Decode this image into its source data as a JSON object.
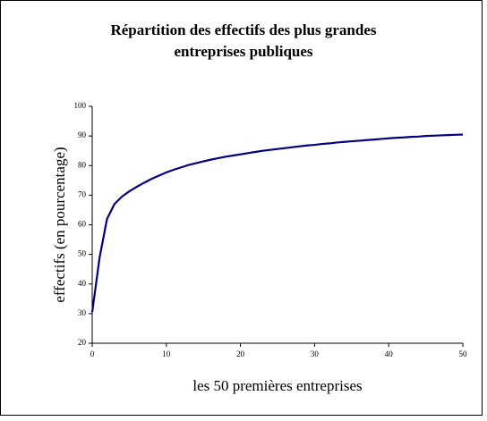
{
  "chart_data": {
    "type": "line",
    "title": "Répartition des effectifs des plus grandes entreprises publiques",
    "xlabel": "les 50 premières entreprises",
    "ylabel": "effectifs (en pourcentage)",
    "x": [
      0,
      1,
      2,
      3,
      4,
      5,
      6,
      7,
      8,
      9,
      10,
      11,
      12,
      13,
      14,
      15,
      16,
      17,
      18,
      19,
      20,
      21,
      22,
      23,
      24,
      25,
      26,
      27,
      28,
      29,
      30,
      31,
      32,
      33,
      34,
      35,
      36,
      37,
      38,
      39,
      40,
      41,
      42,
      43,
      44,
      45,
      46,
      47,
      48,
      49,
      50
    ],
    "series": [
      {
        "color": "#000080",
        "values": [
          30.5,
          49,
          62,
          67,
          69.5,
          71.3,
          72.8,
          74.2,
          75.5,
          76.6,
          77.7,
          78.6,
          79.4,
          80.2,
          80.8,
          81.4,
          82,
          82.5,
          83,
          83.4,
          83.8,
          84.2,
          84.6,
          85,
          85.3,
          85.6,
          85.9,
          86.2,
          86.5,
          86.8,
          87,
          87.3,
          87.5,
          87.8,
          88,
          88.2,
          88.4,
          88.6,
          88.8,
          89,
          89.2,
          89.4,
          89.5,
          89.7,
          89.8,
          90,
          90.1,
          90.2,
          90.3,
          90.4,
          90.5
        ]
      }
    ],
    "xlim": [
      0,
      50
    ],
    "xticks": [
      0,
      10,
      20,
      30,
      40,
      50
    ],
    "ylim": [
      20,
      100
    ],
    "yticks": [
      20,
      30,
      40,
      50,
      60,
      70,
      80,
      90,
      100
    ],
    "grid": false
  }
}
